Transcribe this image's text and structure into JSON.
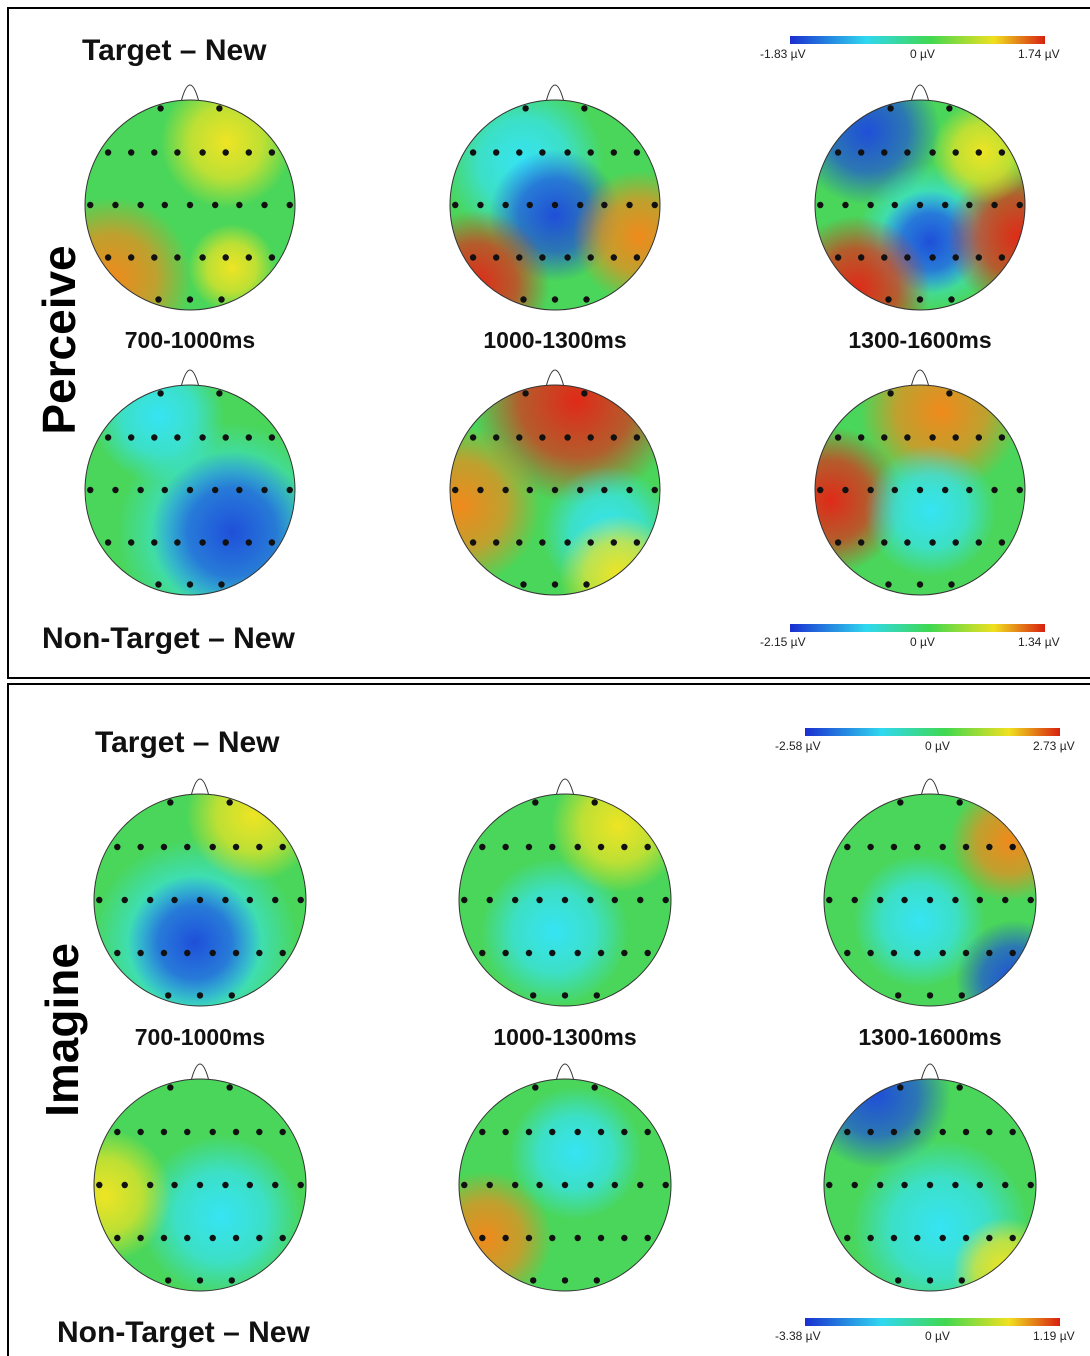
{
  "panels": [
    {
      "label": "Perceive",
      "top_condition": "Target – New",
      "bottom_condition": "Non-Target – New",
      "time_windows": [
        "700-1000ms",
        "1000-1300ms",
        "1300-1600ms"
      ],
      "top_scale": {
        "min": "-1.83 µV",
        "zero": "0 µV",
        "max": "1.74 µV"
      },
      "bottom_scale": {
        "min": "-2.15 µV",
        "zero": "0 µV",
        "max": "1.34 µV"
      }
    },
    {
      "label": "Imagine",
      "top_condition": "Target – New",
      "bottom_condition": "Non-Target – New",
      "time_windows": [
        "700-1000ms",
        "1000-1300ms",
        "1300-1600ms"
      ],
      "top_scale": {
        "min": "-2.58 µV",
        "zero": "0 µV",
        "max": "2.73 µV"
      },
      "bottom_scale": {
        "min": "-3.38 µV",
        "zero": "0 µV",
        "max": "1.19 µV"
      }
    }
  ]
}
